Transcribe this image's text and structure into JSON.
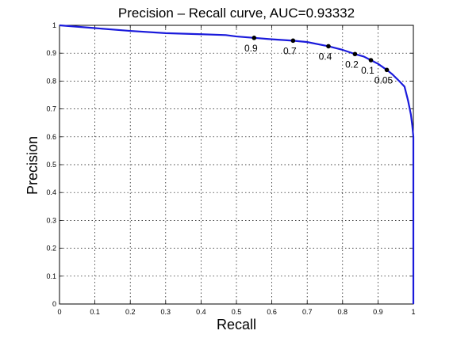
{
  "chart_data": {
    "type": "line",
    "title": "Precision – Recall curve, AUC=0.93332",
    "xlabel": "Recall",
    "ylabel": "Precision",
    "xlim": [
      0,
      1
    ],
    "ylim": [
      0,
      1
    ],
    "grid": true,
    "x_ticks": [
      "0",
      "0.1",
      "0.2",
      "0.3",
      "0.4",
      "0.5",
      "0.6",
      "0.7",
      "0.8",
      "0.9",
      "1"
    ],
    "y_ticks": [
      "0",
      "0.1",
      "0.2",
      "0.3",
      "0.4",
      "0.5",
      "0.6",
      "0.7",
      "0.8",
      "0.9",
      "1"
    ],
    "line_color": "#1a1adb",
    "series": [
      {
        "x": [
          0.0,
          0.05,
          0.1,
          0.2,
          0.3,
          0.4,
          0.47,
          0.5,
          0.55,
          0.6,
          0.66,
          0.7,
          0.76,
          0.8,
          0.835,
          0.86,
          0.88,
          0.9,
          0.925,
          0.94,
          0.96,
          0.975,
          0.985,
          0.993,
          0.997,
          1.0,
          1.0
        ],
        "y": [
          1.0,
          0.995,
          0.99,
          0.98,
          0.972,
          0.968,
          0.965,
          0.96,
          0.955,
          0.95,
          0.945,
          0.94,
          0.925,
          0.912,
          0.897,
          0.888,
          0.875,
          0.862,
          0.84,
          0.825,
          0.8,
          0.78,
          0.73,
          0.68,
          0.64,
          0.6,
          0.0
        ]
      }
    ],
    "thresholds": [
      {
        "label": "0.9",
        "x": 0.55,
        "y": 0.955
      },
      {
        "label": "0.7",
        "x": 0.66,
        "y": 0.945
      },
      {
        "label": "0.4",
        "x": 0.76,
        "y": 0.925
      },
      {
        "label": "0.2",
        "x": 0.835,
        "y": 0.897
      },
      {
        "label": "0.1",
        "x": 0.88,
        "y": 0.875
      },
      {
        "label": "0.05",
        "x": 0.925,
        "y": 0.84
      }
    ]
  }
}
